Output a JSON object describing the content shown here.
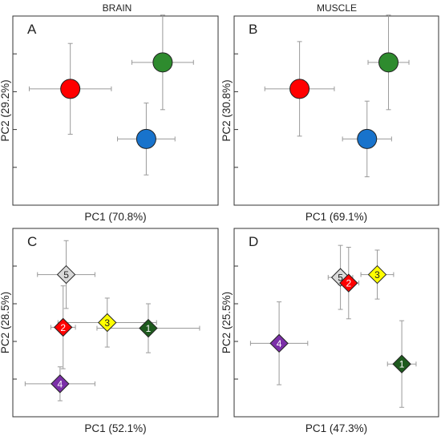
{
  "columns": [
    "BRAIN",
    "MUSCLE"
  ],
  "chart_data": [
    {
      "panel": "A",
      "type": "scatter",
      "marker": "circle",
      "xlabel": "PC1 (70.8%)",
      "ylabel": "PC2 (29.2%)",
      "xlim": [
        0,
        10
      ],
      "ylim": [
        0,
        10
      ],
      "yticks": [
        2,
        4,
        6,
        8,
        10
      ],
      "series": [
        {
          "color": "#ff0000",
          "x": 2.8,
          "y": 6.15,
          "xerr": 2.0,
          "yerr": 2.4
        },
        {
          "color": "#2e8b2e",
          "x": 7.3,
          "y": 7.55,
          "xerr": 1.5,
          "yerr": 2.5
        },
        {
          "color": "#1873cc",
          "x": 6.5,
          "y": 3.5,
          "xerr": 1.4,
          "yerr": 1.9
        }
      ]
    },
    {
      "panel": "B",
      "type": "scatter",
      "marker": "circle",
      "xlabel": "PC1 (69.1%)",
      "ylabel": "PC2 (30.8%)",
      "xlim": [
        0,
        10
      ],
      "ylim": [
        0,
        10
      ],
      "yticks": [
        2,
        4,
        6,
        8,
        10
      ],
      "series": [
        {
          "color": "#ff0000",
          "x": 3.2,
          "y": 6.15,
          "xerr": 1.7,
          "yerr": 2.5
        },
        {
          "color": "#2e8b2e",
          "x": 7.55,
          "y": 7.55,
          "xerr": 1.0,
          "yerr": 2.5
        },
        {
          "color": "#1873cc",
          "x": 6.5,
          "y": 3.5,
          "xerr": 1.2,
          "yerr": 2.0
        }
      ]
    },
    {
      "panel": "C",
      "type": "scatter",
      "marker": "diamond",
      "xlabel": "PC1 (52.1%)",
      "ylabel": "PC2 (28.5%)",
      "xlim": [
        0,
        10
      ],
      "ylim": [
        0,
        10
      ],
      "yticks": [
        2,
        4,
        6,
        8,
        10
      ],
      "series": [
        {
          "name": "5",
          "color": "#d9d9d9",
          "text": "#222222",
          "x": 2.6,
          "y": 7.55,
          "xerr": 1.4,
          "yerr": 1.8
        },
        {
          "name": "2",
          "color": "#ff0000",
          "text": "#ffffff",
          "x": 2.45,
          "y": 4.75,
          "xerr": 0.6,
          "yerr": 2.2
        },
        {
          "name": "3",
          "color": "#ffff00",
          "text": "#222222",
          "x": 4.6,
          "y": 5.0,
          "xerr": 2.4,
          "yerr": 1.3
        },
        {
          "name": "1",
          "color": "#1e5a1e",
          "text": "#ffffff",
          "x": 6.6,
          "y": 4.7,
          "xerr": 2.5,
          "yerr": 1.3
        },
        {
          "name": "4",
          "color": "#7b2fa8",
          "text": "#ffffff",
          "x": 2.3,
          "y": 1.75,
          "xerr": 1.7,
          "yerr": 0.9
        }
      ]
    },
    {
      "panel": "D",
      "type": "scatter",
      "marker": "diamond",
      "xlabel": "PC1 (47.3%)",
      "ylabel": "PC2 (25.5%)",
      "xlim": [
        0,
        10
      ],
      "ylim": [
        0,
        10
      ],
      "yticks": [
        2,
        4,
        6,
        8,
        10
      ],
      "series": [
        {
          "name": "5",
          "color": "#d9d9d9",
          "text": "#222222",
          "x": 5.2,
          "y": 7.4,
          "xerr": 0.6,
          "yerr": 1.7
        },
        {
          "name": "2",
          "color": "#ff0000",
          "text": "#ffffff",
          "x": 5.6,
          "y": 7.1,
          "xerr": 0.5,
          "yerr": 1.9
        },
        {
          "name": "3",
          "color": "#ffff00",
          "text": "#222222",
          "x": 7.0,
          "y": 7.55,
          "xerr": 0.8,
          "yerr": 1.3
        },
        {
          "name": "4",
          "color": "#7b2fa8",
          "text": "#ffffff",
          "x": 2.2,
          "y": 3.9,
          "xerr": 1.4,
          "yerr": 2.2
        },
        {
          "name": "1",
          "color": "#1e5a1e",
          "text": "#ffffff",
          "x": 8.2,
          "y": 2.8,
          "xerr": 0.7,
          "yerr": 2.3
        }
      ]
    }
  ]
}
